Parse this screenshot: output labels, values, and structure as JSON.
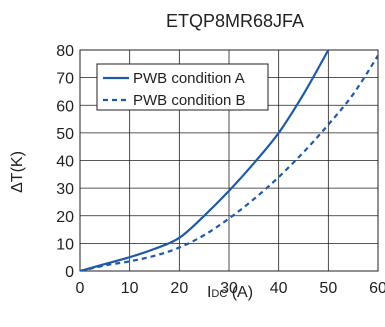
{
  "chart_data": {
    "type": "line",
    "title": "ETQP8MR68JFA",
    "ylabel": "ΔT(K)",
    "xlabel_main": "I",
    "xlabel_sub": "DC",
    "xlabel_unit": " (A)",
    "xlim": [
      0,
      60
    ],
    "ylim": [
      0,
      80
    ],
    "xticks": [
      0,
      10,
      20,
      30,
      40,
      50,
      60
    ],
    "yticks": [
      0,
      10,
      20,
      30,
      40,
      50,
      60,
      70,
      80
    ],
    "grid": true,
    "legend": "top-left",
    "color": "#1f5aa6",
    "series": [
      {
        "name": "PWB condition A",
        "style": "solid",
        "x": [
          0,
          5,
          10,
          15,
          20,
          25,
          30,
          35,
          40,
          45,
          50
        ],
        "y": [
          0,
          2.5,
          5,
          8,
          12,
          20,
          29,
          39,
          50,
          64,
          80
        ]
      },
      {
        "name": "PWB condition B",
        "style": "dashed",
        "x": [
          0,
          5,
          10,
          15,
          20,
          25,
          30,
          35,
          40,
          45,
          50,
          55,
          60
        ],
        "y": [
          0,
          2,
          3.5,
          5.5,
          8.5,
          13,
          19,
          26,
          34,
          43,
          53,
          64,
          78
        ]
      }
    ]
  }
}
